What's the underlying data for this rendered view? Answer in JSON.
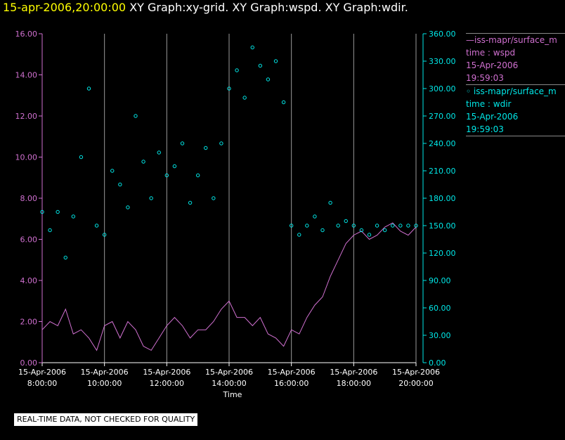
{
  "title": {
    "date": "15-apr-2006,20:00:00",
    "text": "XY Graph:xy-grid.  XY Graph:wspd.  XY Graph:wdir."
  },
  "legend": [
    {
      "line1": "—iss-mapr/surface_m",
      "line2": "time : wspd",
      "line3": "15-Apr-2006",
      "line4": "19:59:03",
      "color": "#d070d0"
    },
    {
      "line1": "◦  iss-mapr/surface_m",
      "line2": "time : wdir",
      "line3": "15-Apr-2006",
      "line4": "19:59:03",
      "color": "#00e8e8"
    }
  ],
  "quality_note": "REAL-TIME DATA, NOT CHECKED FOR QUALITY",
  "colors": {
    "background": "#000000",
    "wspd": "#d070d0",
    "wdir": "#00e8e8",
    "grid": "#ffffff",
    "title_date": "#ffff00"
  },
  "chart_data": {
    "type": "line",
    "xlabel": "Time",
    "xlim": [
      "15-Apr-2006 08:00:00",
      "15-Apr-2006 20:00:00"
    ],
    "x_ticks": [
      {
        "date": "15-Apr-2006",
        "time": "8:00:00"
      },
      {
        "date": "15-Apr-2006",
        "time": "10:00:00"
      },
      {
        "date": "15-Apr-2006",
        "time": "12:00:00"
      },
      {
        "date": "15-Apr-2006",
        "time": "14:00:00"
      },
      {
        "date": "15-Apr-2006",
        "time": "16:00:00"
      },
      {
        "date": "15-Apr-2006",
        "time": "18:00:00"
      },
      {
        "date": "15-Apr-2006",
        "time": "20:00:00"
      }
    ],
    "y_left": {
      "ylim": [
        0,
        16
      ],
      "ticks": [
        "0.00",
        "2.00",
        "4.00",
        "6.00",
        "8.00",
        "10.00",
        "12.00",
        "14.00",
        "16.00"
      ]
    },
    "y_right": {
      "ylim": [
        0,
        360
      ],
      "ticks": [
        "0.00",
        "30.00",
        "60.00",
        "90.00",
        "120.00",
        "150.00",
        "180.00",
        "210.00",
        "240.00",
        "270.00",
        "300.00",
        "330.00",
        "360.00"
      ]
    },
    "grid": "vertical lines at x ticks",
    "series": [
      {
        "name": "time : wspd",
        "axis": "left",
        "style": "line",
        "x": [
          "08:00",
          "08:15",
          "08:30",
          "08:45",
          "09:00",
          "09:15",
          "09:30",
          "09:45",
          "10:00",
          "10:15",
          "10:30",
          "10:45",
          "11:00",
          "11:15",
          "11:30",
          "11:45",
          "12:00",
          "12:15",
          "12:30",
          "12:45",
          "13:00",
          "13:15",
          "13:30",
          "13:45",
          "14:00",
          "14:15",
          "14:30",
          "14:45",
          "15:00",
          "15:15",
          "15:30",
          "15:45",
          "16:00",
          "16:15",
          "16:30",
          "16:45",
          "17:00",
          "17:15",
          "17:30",
          "17:45",
          "18:00",
          "18:15",
          "18:30",
          "18:45",
          "19:00",
          "19:15",
          "19:30",
          "19:45",
          "20:00"
        ],
        "values": [
          1.6,
          2.0,
          1.8,
          2.6,
          1.4,
          1.6,
          1.2,
          0.6,
          1.8,
          2.0,
          1.2,
          2.0,
          1.6,
          0.8,
          0.6,
          1.2,
          1.8,
          2.2,
          1.8,
          1.2,
          1.6,
          1.6,
          2.0,
          2.6,
          3.0,
          2.2,
          2.2,
          1.8,
          2.2,
          1.4,
          1.2,
          0.8,
          1.6,
          1.4,
          2.2,
          2.8,
          3.2,
          4.2,
          5.0,
          5.8,
          6.2,
          6.4,
          6.0,
          6.2,
          6.6,
          6.8,
          6.4,
          6.2,
          6.6
        ]
      },
      {
        "name": "time : wdir",
        "axis": "right",
        "style": "markers",
        "x": [
          "08:00",
          "08:15",
          "08:30",
          "08:45",
          "09:00",
          "09:15",
          "09:30",
          "09:45",
          "10:00",
          "10:15",
          "10:30",
          "10:45",
          "11:00",
          "11:15",
          "11:30",
          "11:45",
          "12:00",
          "12:15",
          "12:30",
          "12:45",
          "13:00",
          "13:15",
          "13:30",
          "13:45",
          "14:00",
          "14:15",
          "14:30",
          "14:45",
          "15:00",
          "15:15",
          "15:30",
          "15:45",
          "16:00",
          "16:15",
          "16:30",
          "16:45",
          "17:00",
          "17:15",
          "17:30",
          "17:45",
          "18:00",
          "18:15",
          "18:30",
          "18:45",
          "19:00",
          "19:15",
          "19:30",
          "19:45",
          "20:00"
        ],
        "values": [
          165,
          145,
          165,
          115,
          160,
          225,
          300,
          150,
          140,
          210,
          195,
          170,
          270,
          220,
          180,
          230,
          205,
          215,
          240,
          175,
          205,
          235,
          180,
          240,
          300,
          320,
          290,
          345,
          325,
          310,
          330,
          285,
          150,
          140,
          150,
          160,
          145,
          175,
          150,
          155,
          150,
          145,
          140,
          150,
          145,
          150,
          150,
          150,
          150
        ]
      }
    ]
  }
}
